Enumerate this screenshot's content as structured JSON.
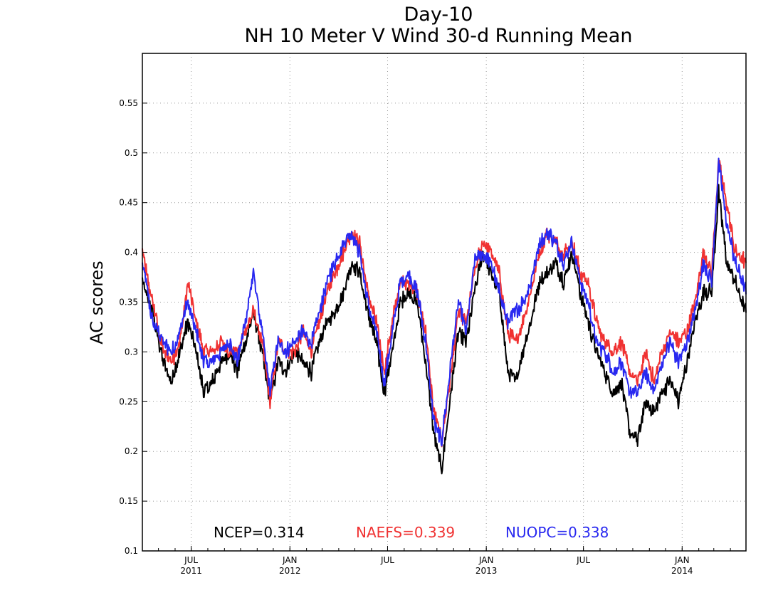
{
  "chart_data": {
    "type": "line",
    "title": "Day-10",
    "subtitle": "NH 10 Meter V Wind 30-d Running Mean",
    "ylabel": "AC scores",
    "xlabel": "",
    "ylim": [
      0.1,
      0.6
    ],
    "yticks": [
      0.1,
      0.15,
      0.2,
      0.25,
      0.3,
      0.35,
      0.4,
      0.45,
      0.5,
      0.55
    ],
    "ytick_labels": [
      "0.1",
      "0.15",
      "0.2",
      "0.25",
      "0.3",
      "0.35",
      "0.4",
      "0.45",
      "0.5",
      "0.55"
    ],
    "xlim": [
      "2011-04-01",
      "2014-04-30"
    ],
    "xticks": [
      {
        "date": "2011-07-01",
        "month": "JUL",
        "year": "2011"
      },
      {
        "date": "2012-01-01",
        "month": "JAN",
        "year": "2012"
      },
      {
        "date": "2012-07-01",
        "month": "JUL",
        "year": ""
      },
      {
        "date": "2013-01-01",
        "month": "JAN",
        "year": "2013"
      },
      {
        "date": "2013-07-01",
        "month": "JUL",
        "year": ""
      },
      {
        "date": "2014-01-01",
        "month": "JAN",
        "year": "2014"
      }
    ],
    "grid": true,
    "series": [
      {
        "name": "NCEP",
        "color": "#000000",
        "stat_label": "NCEP=0.314",
        "x": [
          "2011-04-01",
          "2011-04-20",
          "2011-05-10",
          "2011-05-25",
          "2011-06-10",
          "2011-06-25",
          "2011-07-10",
          "2011-07-25",
          "2011-08-10",
          "2011-08-25",
          "2011-09-10",
          "2011-09-25",
          "2011-10-10",
          "2011-10-25",
          "2011-11-10",
          "2011-11-25",
          "2011-12-10",
          "2011-12-25",
          "2012-01-10",
          "2012-01-25",
          "2012-02-10",
          "2012-02-25",
          "2012-03-10",
          "2012-03-25",
          "2012-04-10",
          "2012-04-25",
          "2012-05-10",
          "2012-05-25",
          "2012-06-10",
          "2012-06-25",
          "2012-07-10",
          "2012-07-25",
          "2012-08-10",
          "2012-08-25",
          "2012-09-10",
          "2012-09-25",
          "2012-10-10",
          "2012-10-25",
          "2012-11-10",
          "2012-11-25",
          "2012-12-10",
          "2012-12-25",
          "2013-01-10",
          "2013-01-25",
          "2013-02-10",
          "2013-02-25",
          "2013-03-10",
          "2013-03-25",
          "2013-04-10",
          "2013-04-25",
          "2013-05-10",
          "2013-05-25",
          "2013-06-10",
          "2013-06-25",
          "2013-07-10",
          "2013-07-25",
          "2013-08-10",
          "2013-08-25",
          "2013-09-10",
          "2013-09-25",
          "2013-10-10",
          "2013-10-25",
          "2013-11-10",
          "2013-11-25",
          "2013-12-10",
          "2013-12-25",
          "2014-01-10",
          "2014-01-25",
          "2014-02-10",
          "2014-02-25",
          "2014-03-10",
          "2014-03-25",
          "2014-04-10",
          "2014-04-30"
        ],
        "y": [
          0.37,
          0.34,
          0.29,
          0.27,
          0.3,
          0.33,
          0.3,
          0.26,
          0.27,
          0.29,
          0.3,
          0.28,
          0.31,
          0.34,
          0.3,
          0.25,
          0.29,
          0.28,
          0.3,
          0.29,
          0.28,
          0.31,
          0.33,
          0.34,
          0.36,
          0.39,
          0.38,
          0.34,
          0.31,
          0.26,
          0.3,
          0.35,
          0.36,
          0.35,
          0.29,
          0.22,
          0.18,
          0.25,
          0.32,
          0.31,
          0.36,
          0.4,
          0.38,
          0.36,
          0.28,
          0.27,
          0.3,
          0.33,
          0.37,
          0.38,
          0.39,
          0.37,
          0.4,
          0.36,
          0.33,
          0.3,
          0.28,
          0.26,
          0.27,
          0.22,
          0.21,
          0.25,
          0.24,
          0.26,
          0.27,
          0.25,
          0.29,
          0.33,
          0.36,
          0.36,
          0.46,
          0.39,
          0.37,
          0.34
        ]
      },
      {
        "name": "NAEFS",
        "color": "#f03232",
        "stat_label": "NAEFS=0.339",
        "x": [
          "2011-04-01",
          "2011-04-20",
          "2011-05-10",
          "2011-05-25",
          "2011-06-10",
          "2011-06-25",
          "2011-07-10",
          "2011-07-25",
          "2011-08-10",
          "2011-08-25",
          "2011-09-10",
          "2011-09-25",
          "2011-10-10",
          "2011-10-25",
          "2011-11-10",
          "2011-11-25",
          "2011-12-10",
          "2011-12-25",
          "2012-01-10",
          "2012-01-25",
          "2012-02-10",
          "2012-02-25",
          "2012-03-10",
          "2012-03-25",
          "2012-04-10",
          "2012-04-25",
          "2012-05-10",
          "2012-05-25",
          "2012-06-10",
          "2012-06-25",
          "2012-07-10",
          "2012-07-25",
          "2012-08-10",
          "2012-08-25",
          "2012-09-10",
          "2012-09-25",
          "2012-10-10",
          "2012-10-25",
          "2012-11-10",
          "2012-11-25",
          "2012-12-10",
          "2012-12-25",
          "2013-01-10",
          "2013-01-25",
          "2013-02-10",
          "2013-02-25",
          "2013-03-10",
          "2013-03-25",
          "2013-04-10",
          "2013-04-25",
          "2013-05-10",
          "2013-05-25",
          "2013-06-10",
          "2013-06-25",
          "2013-07-10",
          "2013-07-25",
          "2013-08-10",
          "2013-08-25",
          "2013-09-10",
          "2013-09-25",
          "2013-10-10",
          "2013-10-25",
          "2013-11-10",
          "2013-11-25",
          "2013-12-10",
          "2013-12-25",
          "2014-01-10",
          "2014-01-25",
          "2014-02-10",
          "2014-02-25",
          "2014-03-10",
          "2014-03-25",
          "2014-04-10",
          "2014-04-30"
        ],
        "y": [
          0.4,
          0.35,
          0.3,
          0.29,
          0.31,
          0.37,
          0.33,
          0.3,
          0.3,
          0.31,
          0.3,
          0.3,
          0.32,
          0.34,
          0.31,
          0.25,
          0.31,
          0.3,
          0.3,
          0.32,
          0.3,
          0.33,
          0.36,
          0.38,
          0.4,
          0.42,
          0.41,
          0.36,
          0.33,
          0.28,
          0.33,
          0.37,
          0.37,
          0.36,
          0.32,
          0.24,
          0.21,
          0.27,
          0.34,
          0.33,
          0.38,
          0.41,
          0.4,
          0.38,
          0.32,
          0.31,
          0.33,
          0.36,
          0.4,
          0.42,
          0.41,
          0.4,
          0.41,
          0.38,
          0.37,
          0.33,
          0.31,
          0.3,
          0.31,
          0.28,
          0.27,
          0.3,
          0.27,
          0.3,
          0.32,
          0.31,
          0.32,
          0.35,
          0.4,
          0.38,
          0.49,
          0.45,
          0.4,
          0.39
        ]
      },
      {
        "name": "NUOPC",
        "color": "#2828f0",
        "stat_label": "NUOPC=0.338",
        "x": [
          "2011-04-01",
          "2011-04-20",
          "2011-05-10",
          "2011-05-25",
          "2011-06-10",
          "2011-06-25",
          "2011-07-10",
          "2011-07-25",
          "2011-08-10",
          "2011-08-25",
          "2011-09-10",
          "2011-09-25",
          "2011-10-10",
          "2011-10-25",
          "2011-11-10",
          "2011-11-25",
          "2011-12-10",
          "2011-12-25",
          "2012-01-10",
          "2012-01-25",
          "2012-02-10",
          "2012-02-25",
          "2012-03-10",
          "2012-03-25",
          "2012-04-10",
          "2012-04-25",
          "2012-05-10",
          "2012-05-25",
          "2012-06-10",
          "2012-06-25",
          "2012-07-10",
          "2012-07-25",
          "2012-08-10",
          "2012-08-25",
          "2012-09-10",
          "2012-09-25",
          "2012-10-10",
          "2012-10-25",
          "2012-11-10",
          "2012-11-25",
          "2012-12-10",
          "2012-12-25",
          "2013-01-10",
          "2013-01-25",
          "2013-02-10",
          "2013-02-25",
          "2013-03-10",
          "2013-03-25",
          "2013-04-10",
          "2013-04-25",
          "2013-05-10",
          "2013-05-25",
          "2013-06-10",
          "2013-06-25",
          "2013-07-10",
          "2013-07-25",
          "2013-08-10",
          "2013-08-25",
          "2013-09-10",
          "2013-09-25",
          "2013-10-10",
          "2013-10-25",
          "2013-11-10",
          "2013-11-25",
          "2013-12-10",
          "2013-12-25",
          "2014-01-10",
          "2014-01-25",
          "2014-02-10",
          "2014-02-25",
          "2014-03-10",
          "2014-03-25",
          "2014-04-10",
          "2014-04-30"
        ],
        "y": [
          0.39,
          0.33,
          0.31,
          0.3,
          0.32,
          0.35,
          0.32,
          0.29,
          0.29,
          0.3,
          0.31,
          0.29,
          0.33,
          0.38,
          0.32,
          0.26,
          0.31,
          0.3,
          0.31,
          0.32,
          0.31,
          0.34,
          0.37,
          0.39,
          0.41,
          0.42,
          0.4,
          0.35,
          0.32,
          0.27,
          0.32,
          0.37,
          0.38,
          0.36,
          0.31,
          0.23,
          0.21,
          0.28,
          0.35,
          0.32,
          0.39,
          0.4,
          0.39,
          0.36,
          0.33,
          0.34,
          0.35,
          0.37,
          0.41,
          0.42,
          0.41,
          0.39,
          0.41,
          0.37,
          0.35,
          0.31,
          0.3,
          0.28,
          0.29,
          0.26,
          0.26,
          0.28,
          0.26,
          0.29,
          0.31,
          0.29,
          0.31,
          0.34,
          0.39,
          0.37,
          0.49,
          0.43,
          0.39,
          0.36
        ]
      }
    ]
  }
}
